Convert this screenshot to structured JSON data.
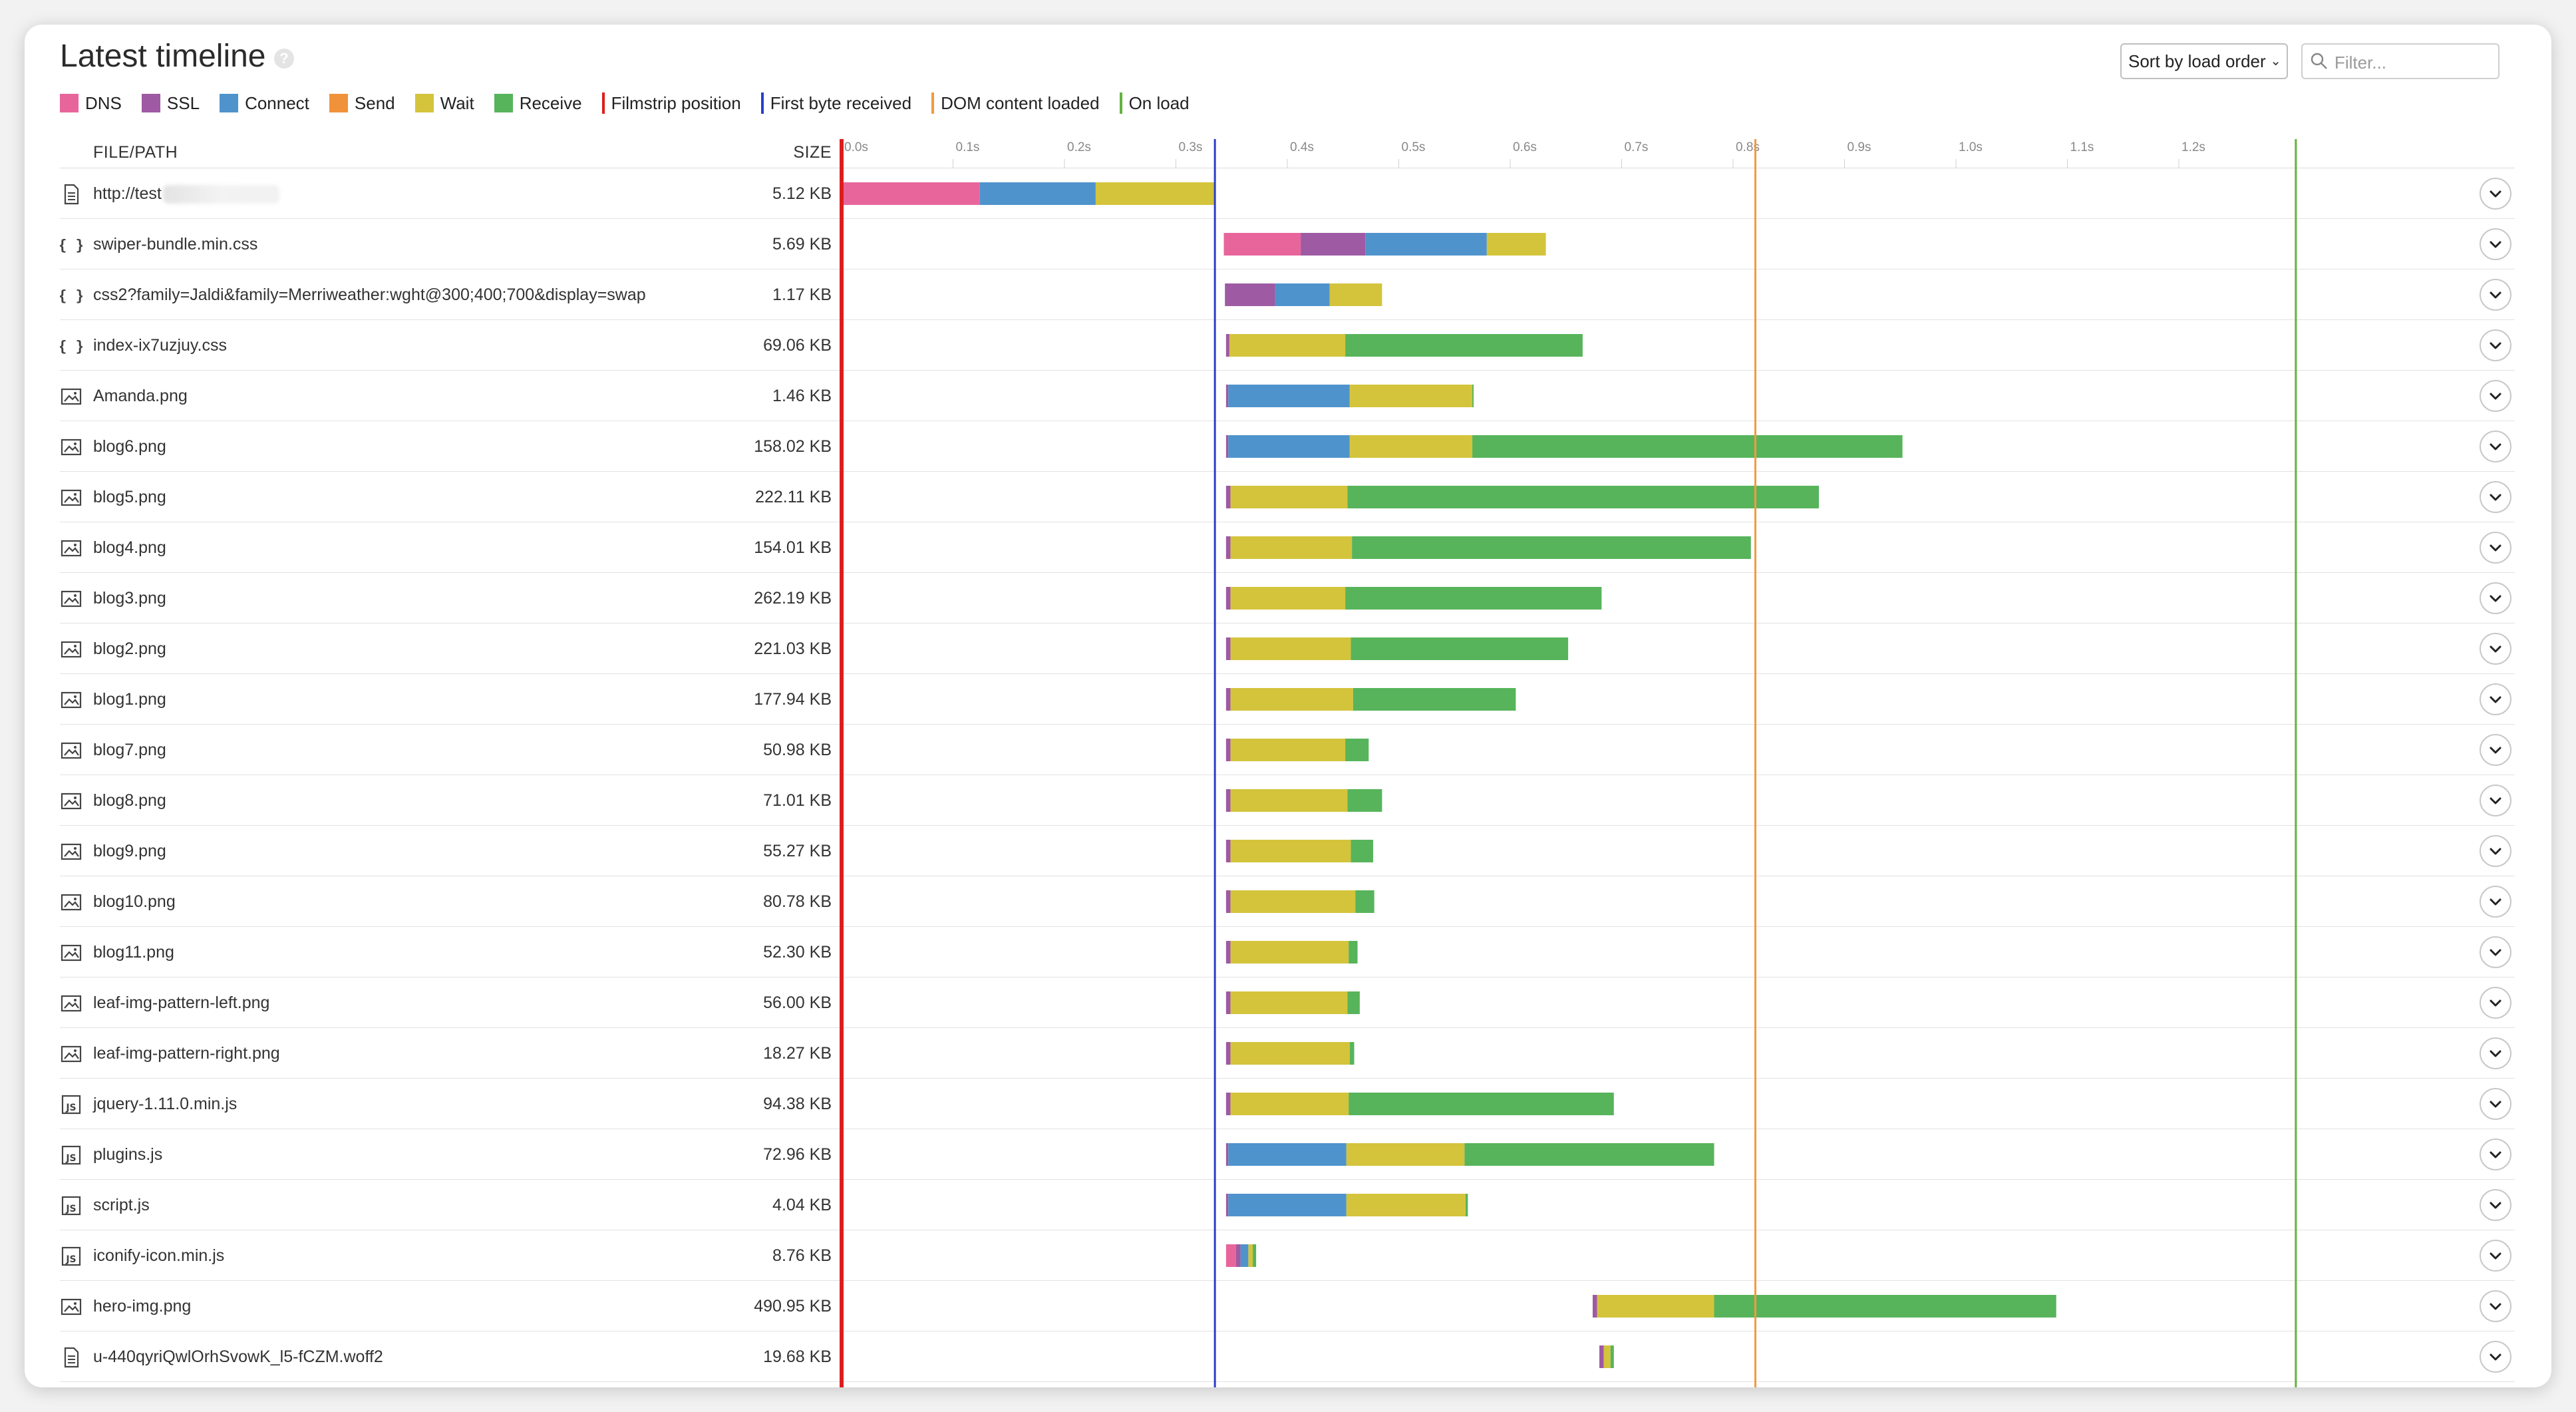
{
  "header": {
    "title": "Latest timeline",
    "help_icon": "?",
    "sort": {
      "selected": "Sort by load order"
    },
    "filter": {
      "placeholder": "Filter..."
    }
  },
  "legend": {
    "phases": [
      {
        "label": "DNS",
        "color": "#e8659c"
      },
      {
        "label": "SSL",
        "color": "#9e5aa3"
      },
      {
        "label": "Connect",
        "color": "#4f93cc"
      },
      {
        "label": "Send",
        "color": "#f0923a"
      },
      {
        "label": "Wait",
        "color": "#d4c43c"
      },
      {
        "label": "Receive",
        "color": "#57b45b"
      }
    ],
    "markers": [
      {
        "label": "Filmstrip position",
        "color": "#dd1d1d"
      },
      {
        "label": "First byte received",
        "color": "#2a3fc7"
      },
      {
        "label": "DOM content loaded",
        "color": "#f29b3d"
      },
      {
        "label": "On load",
        "color": "#62b33f"
      }
    ]
  },
  "table": {
    "col_file": "FILE/PATH",
    "col_size": "SIZE"
  },
  "chart_data": {
    "type": "waterfall",
    "x_unit": "s",
    "ticks": [
      "0.0s",
      "0.1s",
      "0.2s",
      "0.3s",
      "0.4s",
      "0.5s",
      "0.6s",
      "0.7s",
      "0.8s",
      "0.9s",
      "1.0s",
      "1.1s",
      "1.2s"
    ],
    "markers": [
      {
        "name": "Filmstrip position",
        "t": 0.0,
        "color": "#dd1d1d"
      },
      {
        "name": "First byte received",
        "t": 0.335,
        "color": "#2a3fc7"
      },
      {
        "name": "DOM content loaded",
        "t": 0.82,
        "color": "#f29b3d"
      },
      {
        "name": "On load",
        "t": 1.305,
        "color": "#62b33f"
      }
    ],
    "rows": [
      {
        "file": "http://test",
        "redacted": true,
        "size": "5.12 KB",
        "icon": "document",
        "segments": [
          {
            "phase": "DNS",
            "start": 0.0,
            "end": 0.124
          },
          {
            "phase": "Connect",
            "start": 0.124,
            "end": 0.228
          },
          {
            "phase": "Wait",
            "start": 0.228,
            "end": 0.335
          }
        ]
      },
      {
        "file": "swiper-bundle.min.css",
        "size": "5.69 KB",
        "icon": "css",
        "segments": [
          {
            "phase": "DNS",
            "start": 0.343,
            "end": 0.412
          },
          {
            "phase": "SSL",
            "start": 0.412,
            "end": 0.47
          },
          {
            "phase": "Connect",
            "start": 0.47,
            "end": 0.579
          },
          {
            "phase": "Wait",
            "start": 0.579,
            "end": 0.632
          }
        ]
      },
      {
        "file": "css2?family=Jaldi&family=Merriweather:wght@300;400;700&display=swap",
        "size": "1.17 KB",
        "icon": "css",
        "segments": [
          {
            "phase": "SSL",
            "start": 0.344,
            "end": 0.389
          },
          {
            "phase": "Connect",
            "start": 0.389,
            "end": 0.438
          },
          {
            "phase": "Wait",
            "start": 0.438,
            "end": 0.485
          }
        ]
      },
      {
        "file": "index-ix7uzjuy.css",
        "size": "69.06 KB",
        "icon": "css",
        "segments": [
          {
            "phase": "SSL",
            "start": 0.345,
            "end": 0.348
          },
          {
            "phase": "Wait",
            "start": 0.348,
            "end": 0.452
          },
          {
            "phase": "Receive",
            "start": 0.452,
            "end": 0.665
          }
        ]
      },
      {
        "file": "Amanda.png",
        "size": "1.46 KB",
        "icon": "image",
        "segments": [
          {
            "phase": "SSL",
            "start": 0.345,
            "end": 0.347
          },
          {
            "phase": "Connect",
            "start": 0.347,
            "end": 0.456
          },
          {
            "phase": "Wait",
            "start": 0.456,
            "end": 0.566
          },
          {
            "phase": "Receive",
            "start": 0.566,
            "end": 0.567
          }
        ]
      },
      {
        "file": "blog6.png",
        "size": "158.02 KB",
        "icon": "image",
        "segments": [
          {
            "phase": "SSL",
            "start": 0.345,
            "end": 0.347
          },
          {
            "phase": "Connect",
            "start": 0.347,
            "end": 0.456
          },
          {
            "phase": "Wait",
            "start": 0.456,
            "end": 0.566
          },
          {
            "phase": "Receive",
            "start": 0.566,
            "end": 0.952
          }
        ]
      },
      {
        "file": "blog5.png",
        "size": "222.11 KB",
        "icon": "image",
        "segments": [
          {
            "phase": "SSL",
            "start": 0.345,
            "end": 0.349
          },
          {
            "phase": "Wait",
            "start": 0.349,
            "end": 0.454
          },
          {
            "phase": "Receive",
            "start": 0.454,
            "end": 0.877
          }
        ]
      },
      {
        "file": "blog4.png",
        "size": "154.01 KB",
        "icon": "image",
        "segments": [
          {
            "phase": "SSL",
            "start": 0.345,
            "end": 0.349
          },
          {
            "phase": "Wait",
            "start": 0.349,
            "end": 0.458
          },
          {
            "phase": "Receive",
            "start": 0.458,
            "end": 0.816
          }
        ]
      },
      {
        "file": "blog3.png",
        "size": "262.19 KB",
        "icon": "image",
        "segments": [
          {
            "phase": "SSL",
            "start": 0.345,
            "end": 0.349
          },
          {
            "phase": "Wait",
            "start": 0.349,
            "end": 0.452
          },
          {
            "phase": "Receive",
            "start": 0.452,
            "end": 0.682
          }
        ]
      },
      {
        "file": "blog2.png",
        "size": "221.03 KB",
        "icon": "image",
        "segments": [
          {
            "phase": "SSL",
            "start": 0.345,
            "end": 0.349
          },
          {
            "phase": "Wait",
            "start": 0.349,
            "end": 0.457
          },
          {
            "phase": "Receive",
            "start": 0.457,
            "end": 0.652
          }
        ]
      },
      {
        "file": "blog1.png",
        "size": "177.94 KB",
        "icon": "image",
        "segments": [
          {
            "phase": "SSL",
            "start": 0.345,
            "end": 0.349
          },
          {
            "phase": "Wait",
            "start": 0.349,
            "end": 0.459
          },
          {
            "phase": "Receive",
            "start": 0.459,
            "end": 0.605
          }
        ]
      },
      {
        "file": "blog7.png",
        "size": "50.98 KB",
        "icon": "image",
        "segments": [
          {
            "phase": "SSL",
            "start": 0.345,
            "end": 0.349
          },
          {
            "phase": "Wait",
            "start": 0.349,
            "end": 0.452
          },
          {
            "phase": "Receive",
            "start": 0.452,
            "end": 0.473
          }
        ]
      },
      {
        "file": "blog8.png",
        "size": "71.01 KB",
        "icon": "image",
        "segments": [
          {
            "phase": "SSL",
            "start": 0.345,
            "end": 0.349
          },
          {
            "phase": "Wait",
            "start": 0.349,
            "end": 0.454
          },
          {
            "phase": "Receive",
            "start": 0.454,
            "end": 0.485
          }
        ]
      },
      {
        "file": "blog9.png",
        "size": "55.27 KB",
        "icon": "image",
        "segments": [
          {
            "phase": "SSL",
            "start": 0.345,
            "end": 0.349
          },
          {
            "phase": "Wait",
            "start": 0.349,
            "end": 0.457
          },
          {
            "phase": "Receive",
            "start": 0.457,
            "end": 0.477
          }
        ]
      },
      {
        "file": "blog10.png",
        "size": "80.78 KB",
        "icon": "image",
        "segments": [
          {
            "phase": "SSL",
            "start": 0.345,
            "end": 0.349
          },
          {
            "phase": "Wait",
            "start": 0.349,
            "end": 0.461
          },
          {
            "phase": "Receive",
            "start": 0.461,
            "end": 0.478
          }
        ]
      },
      {
        "file": "blog11.png",
        "size": "52.30 KB",
        "icon": "image",
        "segments": [
          {
            "phase": "SSL",
            "start": 0.345,
            "end": 0.349
          },
          {
            "phase": "Wait",
            "start": 0.349,
            "end": 0.455
          },
          {
            "phase": "Receive",
            "start": 0.455,
            "end": 0.463
          }
        ]
      },
      {
        "file": "leaf-img-pattern-left.png",
        "size": "56.00 KB",
        "icon": "image",
        "segments": [
          {
            "phase": "SSL",
            "start": 0.345,
            "end": 0.349
          },
          {
            "phase": "Wait",
            "start": 0.349,
            "end": 0.454
          },
          {
            "phase": "Receive",
            "start": 0.454,
            "end": 0.465
          }
        ]
      },
      {
        "file": "leaf-img-pattern-right.png",
        "size": "18.27 KB",
        "icon": "image",
        "segments": [
          {
            "phase": "SSL",
            "start": 0.345,
            "end": 0.349
          },
          {
            "phase": "Wait",
            "start": 0.349,
            "end": 0.456
          },
          {
            "phase": "Receive",
            "start": 0.456,
            "end": 0.46
          }
        ]
      },
      {
        "file": "jquery-1.11.0.min.js",
        "size": "94.38 KB",
        "icon": "script",
        "segments": [
          {
            "phase": "SSL",
            "start": 0.345,
            "end": 0.349
          },
          {
            "phase": "Wait",
            "start": 0.349,
            "end": 0.455
          },
          {
            "phase": "Receive",
            "start": 0.455,
            "end": 0.693
          }
        ]
      },
      {
        "file": "plugins.js",
        "size": "72.96 KB",
        "icon": "script",
        "segments": [
          {
            "phase": "SSL",
            "start": 0.345,
            "end": 0.347
          },
          {
            "phase": "Connect",
            "start": 0.347,
            "end": 0.453
          },
          {
            "phase": "Wait",
            "start": 0.453,
            "end": 0.559
          },
          {
            "phase": "Receive",
            "start": 0.559,
            "end": 0.783
          }
        ]
      },
      {
        "file": "script.js",
        "size": "4.04 KB",
        "icon": "script",
        "segments": [
          {
            "phase": "SSL",
            "start": 0.345,
            "end": 0.347
          },
          {
            "phase": "Connect",
            "start": 0.347,
            "end": 0.453
          },
          {
            "phase": "Wait",
            "start": 0.453,
            "end": 0.56
          },
          {
            "phase": "Receive",
            "start": 0.56,
            "end": 0.562
          }
        ]
      },
      {
        "file": "iconify-icon.min.js",
        "size": "8.76 KB",
        "icon": "script",
        "segments": [
          {
            "phase": "DNS",
            "start": 0.345,
            "end": 0.354
          },
          {
            "phase": "SSL",
            "start": 0.354,
            "end": 0.358
          },
          {
            "phase": "Connect",
            "start": 0.358,
            "end": 0.365
          },
          {
            "phase": "Wait",
            "start": 0.365,
            "end": 0.369
          },
          {
            "phase": "Receive",
            "start": 0.369,
            "end": 0.372
          }
        ]
      },
      {
        "file": "hero-img.png",
        "size": "490.95 KB",
        "icon": "image",
        "segments": [
          {
            "phase": "SSL",
            "start": 0.674,
            "end": 0.678
          },
          {
            "phase": "Wait",
            "start": 0.678,
            "end": 0.783
          },
          {
            "phase": "Receive",
            "start": 0.783,
            "end": 1.09
          }
        ]
      },
      {
        "file": "u-440qyriQwlOrhSvowK_l5-fCZM.woff2",
        "size": "19.68 KB",
        "icon": "document",
        "segments": [
          {
            "phase": "SSL",
            "start": 0.68,
            "end": 0.684
          },
          {
            "phase": "Wait",
            "start": 0.684,
            "end": 0.69
          },
          {
            "phase": "Receive",
            "start": 0.69,
            "end": 0.693
          }
        ]
      }
    ]
  }
}
